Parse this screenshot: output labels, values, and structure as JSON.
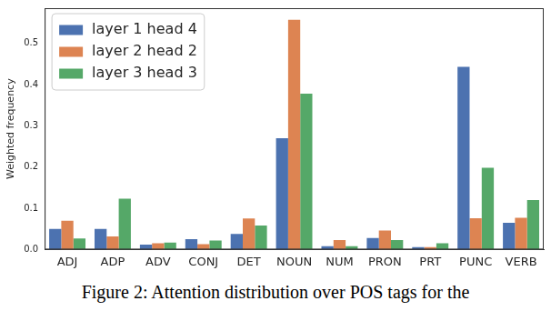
{
  "chart_data": {
    "type": "bar",
    "y_label": "Weighted frequency",
    "categories": [
      "ADJ",
      "ADP",
      "ADV",
      "CONJ",
      "DET",
      "NOUN",
      "NUM",
      "PRON",
      "PRT",
      "PUNC",
      "VERB"
    ],
    "series": [
      {
        "name": "layer 1 head 4",
        "color": "#4c72b0",
        "values": [
          0.05,
          0.05,
          0.012,
          0.025,
          0.038,
          0.27,
          0.008,
          0.028,
          0.006,
          0.443,
          0.065
        ]
      },
      {
        "name": "layer 2 head 2",
        "color": "#dd8452",
        "values": [
          0.07,
          0.032,
          0.015,
          0.013,
          0.075,
          0.557,
          0.023,
          0.046,
          0.006,
          0.076,
          0.077
        ]
      },
      {
        "name": "layer 3 head 3",
        "color": "#55a868",
        "values": [
          0.027,
          0.123,
          0.017,
          0.022,
          0.058,
          0.378,
          0.008,
          0.023,
          0.015,
          0.198,
          0.12
        ]
      }
    ],
    "ylim": [
      0,
      0.585
    ],
    "yticks": [
      {
        "value": 0,
        "label": "0.0"
      },
      0.1,
      0.2,
      0.3,
      0.4,
      0.5
    ],
    "grid": false,
    "legend": "upper left"
  },
  "caption": "Figure 2: Attention distribution over POS tags for the"
}
